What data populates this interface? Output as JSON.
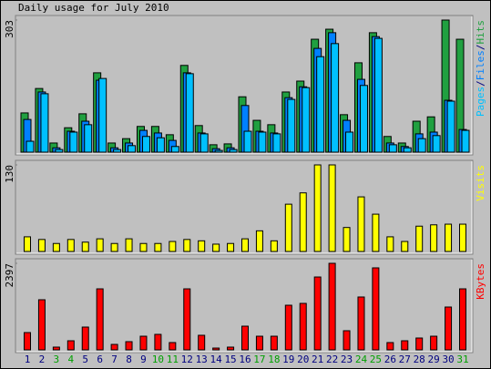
{
  "chart_data": [
    {
      "type": "bar",
      "title": "Daily usage for July 2010",
      "legend_separator": "/",
      "ylim": [
        0,
        303
      ],
      "yticks": [
        303
      ],
      "series": [
        {
          "name": "Pages",
          "color": "#00c0ff",
          "values": [
            25,
            134,
            6,
            46,
            63,
            169,
            6,
            15,
            36,
            33,
            13,
            180,
            42,
            4,
            6,
            48,
            46,
            42,
            121,
            148,
            219,
            249,
            46,
            153,
            261,
            17,
            10,
            31,
            38,
            117,
            50
          ]
        },
        {
          "name": "Files",
          "color": "#0080ff",
          "values": [
            75,
            138,
            10,
            48,
            71,
            165,
            10,
            21,
            50,
            44,
            27,
            182,
            44,
            8,
            10,
            107,
            48,
            44,
            125,
            150,
            238,
            274,
            73,
            167,
            265,
            21,
            13,
            42,
            46,
            119,
            52
          ]
        },
        {
          "name": "Hits",
          "color": "#20a040",
          "values": [
            90,
            146,
            21,
            56,
            88,
            182,
            21,
            31,
            59,
            59,
            40,
            199,
            61,
            17,
            19,
            127,
            73,
            63,
            138,
            163,
            259,
            282,
            86,
            205,
            274,
            36,
            21,
            71,
            81,
            303,
            259
          ]
        }
      ]
    },
    {
      "type": "bar",
      "ylim": [
        0,
        130
      ],
      "yticks": [
        130
      ],
      "series": [
        {
          "name": "Visits",
          "color": "#ffff00",
          "values": [
            22,
            18,
            12,
            18,
            14,
            19,
            12,
            19,
            12,
            12,
            15,
            18,
            16,
            11,
            12,
            19,
            31,
            16,
            71,
            88,
            130,
            130,
            36,
            82,
            56,
            22,
            15,
            38,
            40,
            41,
            41
          ]
        }
      ]
    },
    {
      "type": "bar",
      "ylim": [
        0,
        2397
      ],
      "yticks": [
        2397
      ],
      "series": [
        {
          "name": "KBytes",
          "color": "#ff0000",
          "values": [
            479,
            1388,
            76,
            252,
            631,
            1690,
            151,
            227,
            378,
            429,
            202,
            1690,
            404,
            50,
            76,
            656,
            378,
            378,
            1236,
            1287,
            2018,
            2397,
            530,
            1464,
            2271,
            202,
            252,
            328,
            378,
            1186,
            1690
          ]
        }
      ],
      "categories": [
        "1",
        "2",
        "3",
        "4",
        "5",
        "6",
        "7",
        "8",
        "9",
        "10",
        "11",
        "12",
        "13",
        "14",
        "15",
        "16",
        "17",
        "18",
        "19",
        "20",
        "21",
        "22",
        "23",
        "24",
        "25",
        "26",
        "27",
        "28",
        "29",
        "30",
        "31"
      ],
      "category_colors": [
        "#000080",
        "#000080",
        "#00a000",
        "#00a000",
        "#000080",
        "#000080",
        "#000080",
        "#000080",
        "#000080",
        "#00a000",
        "#00a000",
        "#000080",
        "#000080",
        "#000080",
        "#000080",
        "#000080",
        "#00a000",
        "#00a000",
        "#000080",
        "#000080",
        "#000080",
        "#000080",
        "#000080",
        "#00a000",
        "#00a000",
        "#000080",
        "#000080",
        "#000080",
        "#000080",
        "#000080",
        "#00a000"
      ]
    }
  ]
}
